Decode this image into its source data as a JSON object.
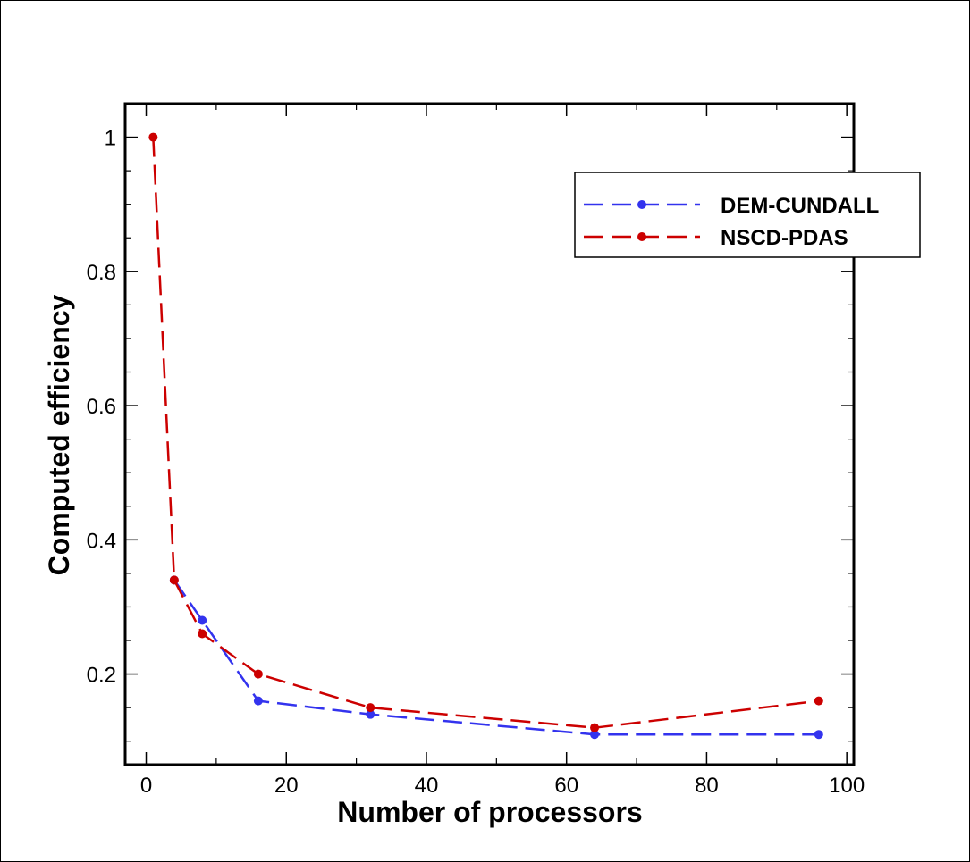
{
  "chart_data": {
    "type": "line",
    "title": "",
    "xlabel": "Number of processors",
    "ylabel": "Computed efficiency",
    "xlim": [
      -3,
      101
    ],
    "ylim": [
      0.065,
      1.05
    ],
    "xticks": [
      0,
      20,
      40,
      60,
      80,
      100
    ],
    "xtick_labels": [
      "0",
      "20",
      "40",
      "60",
      "80",
      "100"
    ],
    "yticks": [
      0.2,
      0.4,
      0.6,
      0.8,
      1.0
    ],
    "ytick_labels": [
      "0.2",
      "0.4",
      "0.6",
      "0.8",
      "1"
    ],
    "grid": false,
    "legend_position": "top-right",
    "series": [
      {
        "name": "DEM-CUNDALL",
        "color": "#3333ee",
        "x": [
          4,
          8,
          16,
          32,
          64,
          96
        ],
        "y": [
          0.34,
          0.28,
          0.16,
          0.14,
          0.11,
          0.11
        ]
      },
      {
        "name": "NSCD-PDAS",
        "color": "#cc0000",
        "x": [
          1,
          4,
          8,
          16,
          32,
          64,
          96
        ],
        "y": [
          1.0,
          0.34,
          0.26,
          0.2,
          0.15,
          0.12,
          0.16
        ]
      }
    ]
  }
}
